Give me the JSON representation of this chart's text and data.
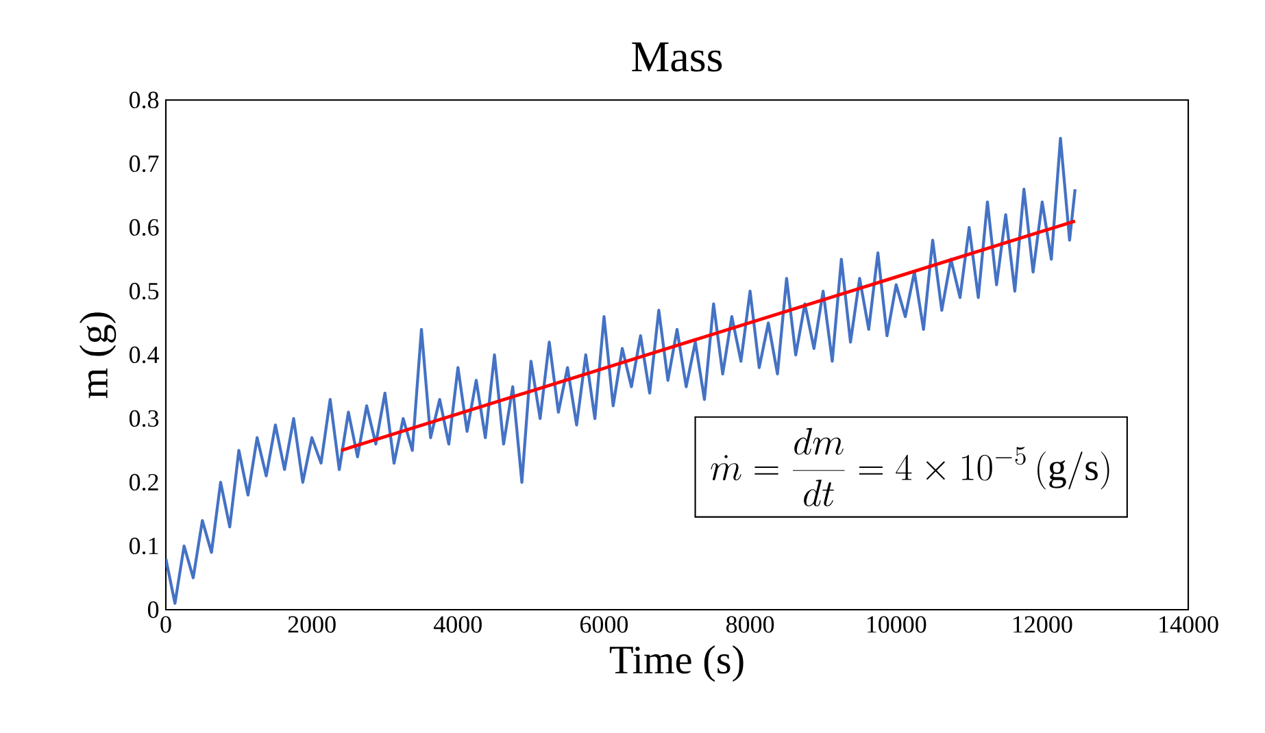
{
  "chart_data": {
    "type": "line",
    "title": "Mass",
    "xlabel": "Time (s)",
    "ylabel": "m (g)",
    "xlim": [
      0,
      14000
    ],
    "xticks": [
      0,
      2000,
      4000,
      6000,
      8000,
      10000,
      12000,
      14000
    ],
    "ylim": [
      0,
      0.8
    ],
    "yticks": [
      0,
      0.1,
      0.2,
      0.3,
      0.4,
      0.5,
      0.6,
      0.7,
      0.8
    ],
    "grid": false,
    "marker": "none",
    "line_style": "solid",
    "annotations": [
      "\\dot{m}=\\frac{dm}{dt}=4\\times10^{-5}\\,\\mathrm{(g/s)}"
    ],
    "series": [
      {
        "color": "#4472c4",
        "x": [
          0,
          125,
          250,
          375,
          500,
          625,
          750,
          875,
          1000,
          1125,
          1250,
          1375,
          1500,
          1625,
          1750,
          1875,
          2000,
          2125,
          2250,
          2375,
          2500,
          2625,
          2750,
          2875,
          3000,
          3125,
          3250,
          3375,
          3500,
          3625,
          3750,
          3875,
          4000,
          4125,
          4250,
          4375,
          4500,
          4625,
          4750,
          4875,
          5000,
          5125,
          5250,
          5375,
          5500,
          5625,
          5750,
          5875,
          6000,
          6125,
          6250,
          6375,
          6500,
          6625,
          6750,
          6875,
          7000,
          7125,
          7250,
          7375,
          7500,
          7625,
          7750,
          7875,
          8000,
          8125,
          8250,
          8375,
          8500,
          8625,
          8750,
          8875,
          9000,
          9125,
          9250,
          9375,
          9500,
          9625,
          9750,
          9875,
          10000,
          10125,
          10250,
          10375,
          10500,
          10625,
          10750,
          10875,
          11000,
          11125,
          11250,
          11375,
          11500,
          11625,
          11750,
          11875,
          12000,
          12125,
          12250,
          12375,
          12450
        ],
        "values": [
          0.08,
          0.01,
          0.1,
          0.05,
          0.14,
          0.09,
          0.2,
          0.13,
          0.25,
          0.18,
          0.27,
          0.21,
          0.29,
          0.22,
          0.3,
          0.2,
          0.27,
          0.23,
          0.33,
          0.22,
          0.31,
          0.24,
          0.32,
          0.26,
          0.34,
          0.23,
          0.3,
          0.25,
          0.44,
          0.27,
          0.33,
          0.26,
          0.38,
          0.28,
          0.36,
          0.27,
          0.4,
          0.26,
          0.35,
          0.2,
          0.39,
          0.3,
          0.42,
          0.31,
          0.38,
          0.29,
          0.4,
          0.3,
          0.46,
          0.32,
          0.41,
          0.35,
          0.43,
          0.34,
          0.47,
          0.36,
          0.44,
          0.35,
          0.42,
          0.33,
          0.48,
          0.37,
          0.46,
          0.39,
          0.5,
          0.38,
          0.45,
          0.37,
          0.52,
          0.4,
          0.48,
          0.41,
          0.5,
          0.39,
          0.55,
          0.42,
          0.52,
          0.44,
          0.56,
          0.43,
          0.51,
          0.46,
          0.53,
          0.44,
          0.58,
          0.47,
          0.55,
          0.49,
          0.6,
          0.49,
          0.64,
          0.51,
          0.62,
          0.5,
          0.66,
          0.53,
          0.64,
          0.55,
          0.74,
          0.58,
          0.66
        ]
      },
      {
        "color": "#ff0000",
        "x": [
          2400,
          12450
        ],
        "values": [
          0.25,
          0.61
        ]
      }
    ]
  }
}
